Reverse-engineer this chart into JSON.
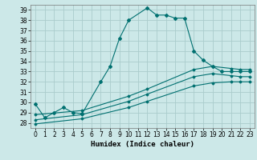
{
  "title": "",
  "xlabel": "Humidex (Indice chaleur)",
  "background_color": "#cce8e8",
  "grid_color": "#aacccc",
  "line_color": "#007070",
  "xlim": [
    -0.5,
    23.5
  ],
  "ylim": [
    27.5,
    39.5
  ],
  "xticks": [
    0,
    1,
    2,
    3,
    4,
    5,
    6,
    7,
    8,
    9,
    10,
    11,
    12,
    13,
    14,
    15,
    16,
    17,
    18,
    19,
    20,
    21,
    22,
    23
  ],
  "yticks": [
    28,
    29,
    30,
    31,
    32,
    33,
    34,
    35,
    36,
    37,
    38,
    39
  ],
  "series1_x": [
    0,
    1,
    2,
    3,
    4,
    5,
    7,
    8,
    9,
    10,
    12,
    13,
    14,
    15,
    16,
    17,
    18,
    19,
    20,
    21,
    22,
    23
  ],
  "series1_y": [
    29.8,
    28.5,
    29.0,
    29.5,
    29.0,
    28.9,
    32.0,
    33.5,
    36.2,
    38.0,
    39.2,
    38.5,
    38.5,
    38.2,
    38.2,
    35.0,
    34.1,
    33.5,
    33.0,
    33.0,
    33.0,
    33.0
  ],
  "series2_x": [
    0,
    5,
    10,
    12,
    17,
    19,
    21,
    22,
    23
  ],
  "series2_y": [
    28.8,
    29.2,
    30.6,
    31.3,
    33.2,
    33.5,
    33.3,
    33.2,
    33.2
  ],
  "series3_x": [
    0,
    5,
    10,
    12,
    17,
    19,
    21,
    22,
    23
  ],
  "series3_y": [
    28.3,
    28.8,
    30.1,
    30.8,
    32.5,
    32.8,
    32.6,
    32.5,
    32.5
  ],
  "series4_x": [
    0,
    5,
    10,
    12,
    17,
    19,
    21,
    22,
    23
  ],
  "series4_y": [
    27.9,
    28.4,
    29.5,
    30.1,
    31.6,
    31.9,
    32.0,
    32.0,
    32.0
  ]
}
